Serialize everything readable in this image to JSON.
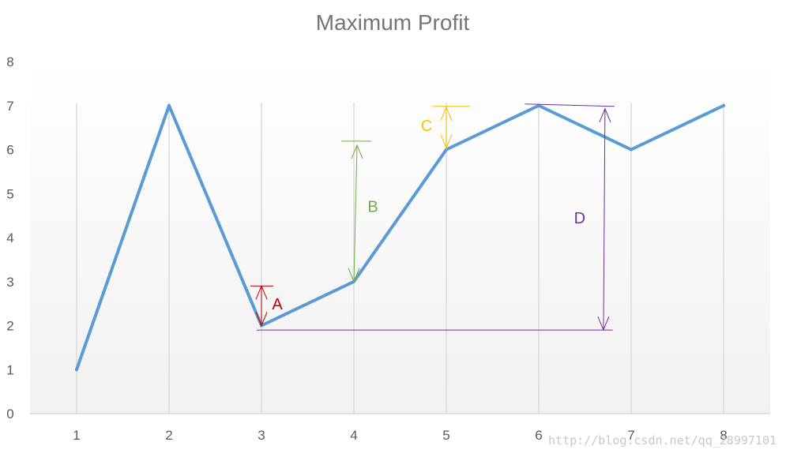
{
  "chart_data": {
    "type": "line",
    "title": "Maximum Profit",
    "xlabel": "",
    "ylabel": "",
    "x": [
      1,
      2,
      3,
      4,
      5,
      6,
      7,
      8
    ],
    "series": [
      {
        "values": [
          1,
          7,
          2,
          3,
          6,
          7,
          6,
          7
        ],
        "color": "#5B9BD5"
      }
    ],
    "ylim": [
      0,
      8
    ],
    "y_ticks": [
      0,
      1,
      2,
      3,
      4,
      5,
      6,
      7,
      8
    ],
    "grid": "vertical",
    "legend": "none",
    "annotations": [
      {
        "label": "A",
        "color": "#C00000",
        "x": 3,
        "from": 2,
        "to": 2.9
      },
      {
        "label": "B",
        "color": "#70AD47",
        "x": 4,
        "from": 3,
        "to": 6.1
      },
      {
        "label": "C",
        "color": "#FFC000",
        "x": 5,
        "from": 6,
        "to": 7
      },
      {
        "label": "D",
        "color": "#7030A0",
        "x": 6.7,
        "from": 1.9,
        "to": 7
      }
    ]
  },
  "watermark": "http://blog.csdn.net/qq_28997101"
}
